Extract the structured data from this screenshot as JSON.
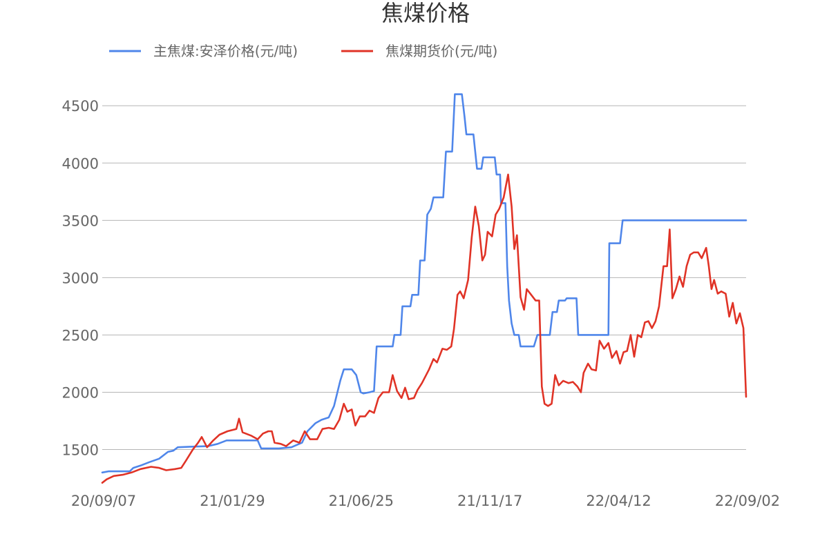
{
  "chart_data": {
    "type": "line",
    "title": "焦煤价格",
    "xlabel": "",
    "ylabel": "",
    "x_tick_labels": [
      "20/09/07",
      "21/01/29",
      "21/06/25",
      "21/11/17",
      "22/04/12",
      "22/09/02"
    ],
    "x_range": [
      "2020-09-07",
      "2022-09-02"
    ],
    "ylim": [
      1100,
      4700
    ],
    "y_ticks": [
      1500,
      2000,
      2500,
      3000,
      3500,
      4000,
      4500
    ],
    "grid": "horizontal",
    "legend": "top",
    "series": [
      {
        "name": "主焦煤:安泽价格(元/吨)",
        "color": "#4f86ea",
        "points": [
          [
            "2020-09-07",
            1300
          ],
          [
            "2020-09-14",
            1310
          ],
          [
            "2020-10-08",
            1310
          ],
          [
            "2020-10-12",
            1340
          ],
          [
            "2020-10-20",
            1360
          ],
          [
            "2020-10-30",
            1390
          ],
          [
            "2020-11-10",
            1420
          ],
          [
            "2020-11-20",
            1480
          ],
          [
            "2020-11-26",
            1490
          ],
          [
            "2020-12-01",
            1520
          ],
          [
            "2020-12-15",
            1525
          ],
          [
            "2021-01-04",
            1530
          ],
          [
            "2021-01-15",
            1550
          ],
          [
            "2021-01-25",
            1580
          ],
          [
            "2021-02-20",
            1580
          ],
          [
            "2021-03-01",
            1580
          ],
          [
            "2021-03-05",
            1510
          ],
          [
            "2021-03-25",
            1510
          ],
          [
            "2021-04-08",
            1520
          ],
          [
            "2021-04-20",
            1560
          ],
          [
            "2021-04-26",
            1660
          ],
          [
            "2021-05-05",
            1730
          ],
          [
            "2021-05-12",
            1760
          ],
          [
            "2021-05-20",
            1780
          ],
          [
            "2021-05-26",
            1880
          ],
          [
            "2021-06-02",
            2100
          ],
          [
            "2021-06-06",
            2200
          ],
          [
            "2021-06-15",
            2200
          ],
          [
            "2021-06-20",
            2150
          ],
          [
            "2021-06-25",
            2000
          ],
          [
            "2021-06-28",
            1990
          ],
          [
            "2021-07-05",
            2000
          ],
          [
            "2021-07-10",
            2010
          ],
          [
            "2021-07-13",
            2400
          ],
          [
            "2021-07-20",
            2400
          ],
          [
            "2021-07-31",
            2400
          ],
          [
            "2021-08-02",
            2500
          ],
          [
            "2021-08-09",
            2500
          ],
          [
            "2021-08-11",
            2750
          ],
          [
            "2021-08-20",
            2750
          ],
          [
            "2021-08-22",
            2850
          ],
          [
            "2021-08-29",
            2850
          ],
          [
            "2021-08-31",
            3150
          ],
          [
            "2021-09-05",
            3150
          ],
          [
            "2021-09-08",
            3550
          ],
          [
            "2021-09-12",
            3600
          ],
          [
            "2021-09-15",
            3700
          ],
          [
            "2021-09-26",
            3700
          ],
          [
            "2021-09-29",
            4100
          ],
          [
            "2021-10-06",
            4100
          ],
          [
            "2021-10-09",
            4600
          ],
          [
            "2021-10-17",
            4600
          ],
          [
            "2021-10-20",
            4400
          ],
          [
            "2021-10-22",
            4250
          ],
          [
            "2021-10-30",
            4250
          ],
          [
            "2021-11-01",
            4100
          ],
          [
            "2021-11-03",
            3950
          ],
          [
            "2021-11-08",
            3950
          ],
          [
            "2021-11-10",
            4050
          ],
          [
            "2021-11-23",
            4050
          ],
          [
            "2021-11-25",
            3900
          ],
          [
            "2021-11-29",
            3900
          ],
          [
            "2021-11-30",
            3650
          ],
          [
            "2021-12-05",
            3650
          ],
          [
            "2021-12-07",
            3100
          ],
          [
            "2021-12-09",
            2800
          ],
          [
            "2021-12-12",
            2600
          ],
          [
            "2021-12-15",
            2500
          ],
          [
            "2021-12-20",
            2500
          ],
          [
            "2021-12-22",
            2400
          ],
          [
            "2022-01-06",
            2400
          ],
          [
            "2022-01-10",
            2500
          ],
          [
            "2022-01-15",
            2500
          ],
          [
            "2022-01-24",
            2500
          ],
          [
            "2022-01-27",
            2700
          ],
          [
            "2022-02-01",
            2700
          ],
          [
            "2022-02-03",
            2800
          ],
          [
            "2022-02-10",
            2800
          ],
          [
            "2022-02-12",
            2820
          ],
          [
            "2022-02-23",
            2820
          ],
          [
            "2022-02-25",
            2500
          ],
          [
            "2022-03-31",
            2500
          ],
          [
            "2022-04-01",
            3300
          ],
          [
            "2022-04-13",
            3300
          ],
          [
            "2022-04-16",
            3500
          ],
          [
            "2022-09-02",
            3500
          ]
        ]
      },
      {
        "name": "焦煤期货价(元/吨)",
        "color": "#e03326",
        "points": [
          [
            "2020-09-07",
            1210
          ],
          [
            "2020-09-12",
            1240
          ],
          [
            "2020-09-20",
            1270
          ],
          [
            "2020-09-30",
            1280
          ],
          [
            "2020-10-10",
            1300
          ],
          [
            "2020-10-20",
            1330
          ],
          [
            "2020-11-01",
            1350
          ],
          [
            "2020-11-10",
            1340
          ],
          [
            "2020-11-18",
            1320
          ],
          [
            "2020-11-28",
            1330
          ],
          [
            "2020-12-05",
            1340
          ],
          [
            "2020-12-10",
            1400
          ],
          [
            "2020-12-18",
            1500
          ],
          [
            "2020-12-24",
            1560
          ],
          [
            "2020-12-28",
            1610
          ],
          [
            "2021-01-03",
            1520
          ],
          [
            "2021-01-10",
            1580
          ],
          [
            "2021-01-17",
            1630
          ],
          [
            "2021-01-26",
            1660
          ],
          [
            "2021-02-05",
            1680
          ],
          [
            "2021-02-08",
            1770
          ],
          [
            "2021-02-12",
            1650
          ],
          [
            "2021-02-22",
            1620
          ],
          [
            "2021-03-01",
            1590
          ],
          [
            "2021-03-07",
            1640
          ],
          [
            "2021-03-13",
            1660
          ],
          [
            "2021-03-17",
            1660
          ],
          [
            "2021-03-20",
            1560
          ],
          [
            "2021-03-27",
            1550
          ],
          [
            "2021-04-02",
            1530
          ],
          [
            "2021-04-10",
            1580
          ],
          [
            "2021-04-17",
            1560
          ],
          [
            "2021-04-23",
            1660
          ],
          [
            "2021-04-29",
            1590
          ],
          [
            "2021-05-07",
            1590
          ],
          [
            "2021-05-13",
            1680
          ],
          [
            "2021-05-20",
            1690
          ],
          [
            "2021-05-26",
            1680
          ],
          [
            "2021-06-01",
            1760
          ],
          [
            "2021-06-06",
            1900
          ],
          [
            "2021-06-10",
            1830
          ],
          [
            "2021-06-15",
            1850
          ],
          [
            "2021-06-19",
            1710
          ],
          [
            "2021-06-24",
            1790
          ],
          [
            "2021-06-30",
            1790
          ],
          [
            "2021-07-05",
            1840
          ],
          [
            "2021-07-10",
            1820
          ],
          [
            "2021-07-15",
            1950
          ],
          [
            "2021-07-20",
            2000
          ],
          [
            "2021-07-27",
            2000
          ],
          [
            "2021-07-31",
            2150
          ],
          [
            "2021-08-05",
            2010
          ],
          [
            "2021-08-10",
            1950
          ],
          [
            "2021-08-14",
            2040
          ],
          [
            "2021-08-18",
            1940
          ],
          [
            "2021-08-24",
            1950
          ],
          [
            "2021-08-28",
            2020
          ],
          [
            "2021-09-02",
            2080
          ],
          [
            "2021-09-10",
            2200
          ],
          [
            "2021-09-15",
            2290
          ],
          [
            "2021-09-19",
            2260
          ],
          [
            "2021-09-25",
            2380
          ],
          [
            "2021-09-30",
            2370
          ],
          [
            "2021-10-05",
            2400
          ],
          [
            "2021-10-08",
            2550
          ],
          [
            "2021-10-12",
            2850
          ],
          [
            "2021-10-15",
            2880
          ],
          [
            "2021-10-19",
            2820
          ],
          [
            "2021-10-24",
            2980
          ],
          [
            "2021-10-28",
            3350
          ],
          [
            "2021-11-01",
            3620
          ],
          [
            "2021-11-05",
            3450
          ],
          [
            "2021-11-09",
            3150
          ],
          [
            "2021-11-12",
            3200
          ],
          [
            "2021-11-15",
            3400
          ],
          [
            "2021-11-20",
            3360
          ],
          [
            "2021-11-24",
            3550
          ],
          [
            "2021-11-28",
            3600
          ],
          [
            "2021-12-03",
            3700
          ],
          [
            "2021-12-08",
            3900
          ],
          [
            "2021-12-12",
            3620
          ],
          [
            "2021-12-15",
            3250
          ],
          [
            "2021-12-18",
            3370
          ],
          [
            "2021-12-22",
            2830
          ],
          [
            "2021-12-26",
            2720
          ],
          [
            "2021-12-29",
            2900
          ],
          [
            "2022-01-02",
            2860
          ],
          [
            "2022-01-08",
            2800
          ],
          [
            "2022-01-12",
            2800
          ],
          [
            "2022-01-15",
            2050
          ],
          [
            "2022-01-18",
            1900
          ],
          [
            "2022-01-22",
            1880
          ],
          [
            "2022-01-26",
            1900
          ],
          [
            "2022-01-30",
            2150
          ],
          [
            "2022-02-03",
            2060
          ],
          [
            "2022-02-08",
            2100
          ],
          [
            "2022-02-14",
            2080
          ],
          [
            "2022-02-19",
            2090
          ],
          [
            "2022-02-24",
            2050
          ],
          [
            "2022-02-28",
            2000
          ],
          [
            "2022-03-03",
            2170
          ],
          [
            "2022-03-08",
            2250
          ],
          [
            "2022-03-12",
            2200
          ],
          [
            "2022-03-17",
            2190
          ],
          [
            "2022-03-21",
            2450
          ],
          [
            "2022-03-26",
            2380
          ],
          [
            "2022-03-31",
            2430
          ],
          [
            "2022-04-04",
            2300
          ],
          [
            "2022-04-09",
            2360
          ],
          [
            "2022-04-13",
            2250
          ],
          [
            "2022-04-17",
            2350
          ],
          [
            "2022-04-21",
            2360
          ],
          [
            "2022-04-25",
            2500
          ],
          [
            "2022-04-29",
            2310
          ],
          [
            "2022-05-03",
            2500
          ],
          [
            "2022-05-07",
            2480
          ],
          [
            "2022-05-11",
            2610
          ],
          [
            "2022-05-15",
            2620
          ],
          [
            "2022-05-19",
            2560
          ],
          [
            "2022-05-23",
            2620
          ],
          [
            "2022-05-27",
            2750
          ],
          [
            "2022-06-01",
            3100
          ],
          [
            "2022-06-05",
            3100
          ],
          [
            "2022-06-08",
            3420
          ],
          [
            "2022-06-11",
            2820
          ],
          [
            "2022-06-15",
            2900
          ],
          [
            "2022-06-19",
            3010
          ],
          [
            "2022-06-23",
            2920
          ],
          [
            "2022-06-27",
            3100
          ],
          [
            "2022-07-01",
            3200
          ],
          [
            "2022-07-05",
            3220
          ],
          [
            "2022-07-10",
            3220
          ],
          [
            "2022-07-14",
            3170
          ],
          [
            "2022-07-19",
            3260
          ],
          [
            "2022-07-22",
            3100
          ],
          [
            "2022-07-25",
            2900
          ],
          [
            "2022-07-28",
            2980
          ],
          [
            "2022-08-01",
            2860
          ],
          [
            "2022-08-05",
            2880
          ],
          [
            "2022-08-10",
            2860
          ],
          [
            "2022-08-14",
            2660
          ],
          [
            "2022-08-18",
            2780
          ],
          [
            "2022-08-22",
            2600
          ],
          [
            "2022-08-26",
            2690
          ],
          [
            "2022-08-30",
            2560
          ],
          [
            "2022-09-02",
            1960
          ]
        ]
      }
    ]
  }
}
